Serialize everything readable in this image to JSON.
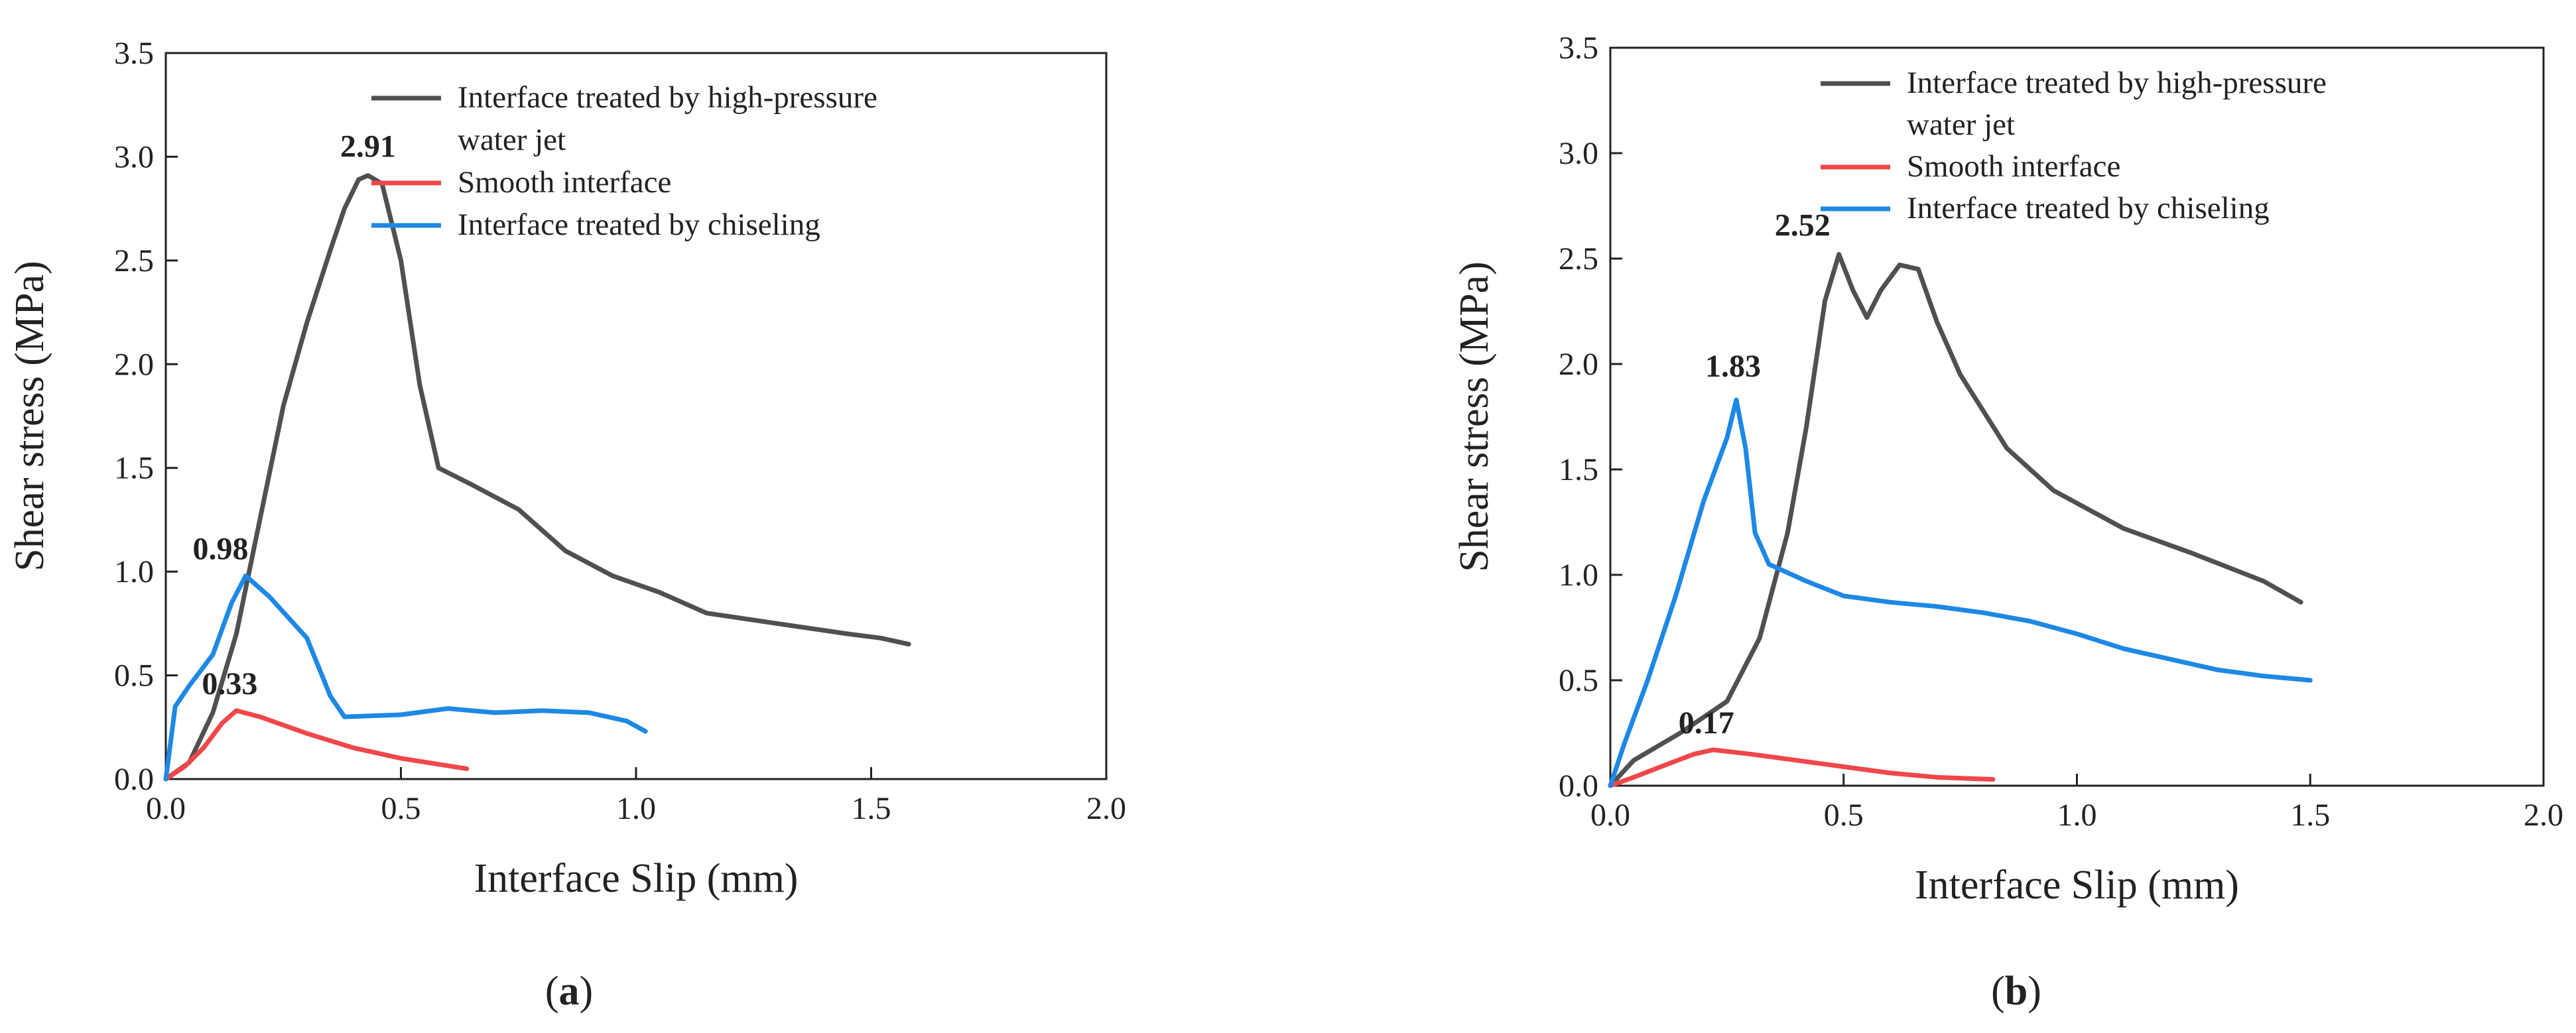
{
  "colors": {
    "water_jet": "#505050",
    "smooth": "#f0474b",
    "chiseling": "#1e88e5",
    "peak_water_jet": "#111111",
    "peak_smooth": "#e8262d",
    "peak_chiseling": "#5a86e6"
  },
  "chart_data": [
    {
      "type": "line",
      "panel": "a",
      "caption": "(a)",
      "caption_open": "(",
      "caption_letter": "a",
      "caption_close": ")",
      "xlabel": "Interface Slip (mm)",
      "ylabel": "Shear stress (MPa)",
      "xlim": [
        0,
        2.0
      ],
      "ylim": [
        0,
        3.5
      ],
      "xticks": [
        "0.0",
        "0.5",
        "1.0",
        "1.5",
        "2.0"
      ],
      "yticks": [
        "0.0",
        "0.5",
        "1.0",
        "1.5",
        "2.0",
        "2.5",
        "3.0",
        "3.5"
      ],
      "xtick_values": [
        0,
        0.5,
        1.0,
        1.5,
        2.0
      ],
      "ytick_values": [
        0,
        0.5,
        1.0,
        1.5,
        2.0,
        2.5,
        3.0,
        3.5
      ],
      "legend_position": "top-right",
      "series": [
        {
          "key": "water_jet",
          "name_line1": "Interface treated by high-pressure",
          "name_line2": "water jet",
          "peak_label": "2.91",
          "peak": [
            0.43,
            2.91
          ],
          "points": [
            [
              0,
              0
            ],
            [
              0.05,
              0.08
            ],
            [
              0.1,
              0.32
            ],
            [
              0.15,
              0.7
            ],
            [
              0.2,
              1.25
            ],
            [
              0.25,
              1.8
            ],
            [
              0.3,
              2.2
            ],
            [
              0.35,
              2.55
            ],
            [
              0.38,
              2.75
            ],
            [
              0.41,
              2.89
            ],
            [
              0.43,
              2.91
            ],
            [
              0.46,
              2.87
            ],
            [
              0.5,
              2.5
            ],
            [
              0.54,
              1.9
            ],
            [
              0.58,
              1.5
            ],
            [
              0.65,
              1.42
            ],
            [
              0.75,
              1.3
            ],
            [
              0.85,
              1.1
            ],
            [
              0.95,
              0.98
            ],
            [
              1.05,
              0.9
            ],
            [
              1.15,
              0.8
            ],
            [
              1.3,
              0.75
            ],
            [
              1.45,
              0.7
            ],
            [
              1.52,
              0.68
            ],
            [
              1.58,
              0.65
            ]
          ]
        },
        {
          "key": "smooth",
          "name_line1": "Smooth interface",
          "peak_label": "0.33",
          "peak": [
            0.15,
            0.33
          ],
          "points": [
            [
              0,
              0
            ],
            [
              0.04,
              0.06
            ],
            [
              0.08,
              0.15
            ],
            [
              0.12,
              0.27
            ],
            [
              0.15,
              0.33
            ],
            [
              0.2,
              0.3
            ],
            [
              0.3,
              0.22
            ],
            [
              0.4,
              0.15
            ],
            [
              0.5,
              0.1
            ],
            [
              0.64,
              0.05
            ]
          ]
        },
        {
          "key": "chiseling",
          "name_line1": "Interface treated by chiseling",
          "peak_label": "0.98",
          "peak": [
            0.17,
            0.98
          ],
          "points": [
            [
              0,
              0
            ],
            [
              0.02,
              0.35
            ],
            [
              0.05,
              0.45
            ],
            [
              0.1,
              0.6
            ],
            [
              0.14,
              0.85
            ],
            [
              0.17,
              0.98
            ],
            [
              0.22,
              0.88
            ],
            [
              0.3,
              0.68
            ],
            [
              0.35,
              0.4
            ],
            [
              0.38,
              0.3
            ],
            [
              0.5,
              0.31
            ],
            [
              0.6,
              0.34
            ],
            [
              0.7,
              0.32
            ],
            [
              0.8,
              0.33
            ],
            [
              0.9,
              0.32
            ],
            [
              0.98,
              0.28
            ],
            [
              1.02,
              0.23
            ]
          ]
        }
      ]
    },
    {
      "type": "line",
      "panel": "b",
      "caption": "(b)",
      "caption_open": "(",
      "caption_letter": "b",
      "caption_close": ")",
      "xlabel": "Interface Slip (mm)",
      "ylabel": "Shear stress (MPa)",
      "xlim": [
        0,
        2.0
      ],
      "ylim": [
        0,
        3.5
      ],
      "xticks": [
        "0.0",
        "0.5",
        "1.0",
        "1.5",
        "2.0"
      ],
      "yticks": [
        "0.0",
        "0.5",
        "1.0",
        "1.5",
        "2.0",
        "2.5",
        "3.0",
        "3.5"
      ],
      "xtick_values": [
        0,
        0.5,
        1.0,
        1.5,
        2.0
      ],
      "ytick_values": [
        0,
        0.5,
        1.0,
        1.5,
        2.0,
        2.5,
        3.0,
        3.5
      ],
      "legend_position": "top-right",
      "series": [
        {
          "key": "water_jet",
          "name_line1": "Interface treated by high-pressure",
          "name_line2": "water jet",
          "peak_label": "2.52",
          "peak": [
            0.49,
            2.52
          ],
          "points": [
            [
              0,
              0
            ],
            [
              0.05,
              0.12
            ],
            [
              0.15,
              0.25
            ],
            [
              0.25,
              0.4
            ],
            [
              0.32,
              0.7
            ],
            [
              0.38,
              1.2
            ],
            [
              0.42,
              1.7
            ],
            [
              0.46,
              2.3
            ],
            [
              0.49,
              2.52
            ],
            [
              0.52,
              2.35
            ],
            [
              0.55,
              2.22
            ],
            [
              0.58,
              2.35
            ],
            [
              0.62,
              2.47
            ],
            [
              0.66,
              2.45
            ],
            [
              0.7,
              2.2
            ],
            [
              0.75,
              1.95
            ],
            [
              0.85,
              1.6
            ],
            [
              0.95,
              1.4
            ],
            [
              1.1,
              1.22
            ],
            [
              1.25,
              1.1
            ],
            [
              1.4,
              0.97
            ],
            [
              1.48,
              0.87
            ]
          ]
        },
        {
          "key": "smooth",
          "name_line1": "Smooth interface",
          "peak_label": "0.17",
          "peak": [
            0.22,
            0.17
          ],
          "points": [
            [
              0,
              0
            ],
            [
              0.05,
              0.04
            ],
            [
              0.12,
              0.1
            ],
            [
              0.18,
              0.15
            ],
            [
              0.22,
              0.17
            ],
            [
              0.3,
              0.15
            ],
            [
              0.4,
              0.12
            ],
            [
              0.5,
              0.09
            ],
            [
              0.6,
              0.06
            ],
            [
              0.7,
              0.04
            ],
            [
              0.82,
              0.03
            ]
          ]
        },
        {
          "key": "chiseling",
          "name_line1": "Interface treated by chiseling",
          "peak_label": "1.83",
          "peak": [
            0.27,
            1.83
          ],
          "points": [
            [
              0,
              0
            ],
            [
              0.03,
              0.2
            ],
            [
              0.08,
              0.5
            ],
            [
              0.14,
              0.9
            ],
            [
              0.2,
              1.35
            ],
            [
              0.25,
              1.65
            ],
            [
              0.27,
              1.83
            ],
            [
              0.29,
              1.6
            ],
            [
              0.31,
              1.2
            ],
            [
              0.34,
              1.05
            ],
            [
              0.42,
              0.97
            ],
            [
              0.5,
              0.9
            ],
            [
              0.6,
              0.87
            ],
            [
              0.7,
              0.85
            ],
            [
              0.8,
              0.82
            ],
            [
              0.9,
              0.78
            ],
            [
              1.0,
              0.72
            ],
            [
              1.1,
              0.65
            ],
            [
              1.2,
              0.6
            ],
            [
              1.3,
              0.55
            ],
            [
              1.4,
              0.52
            ],
            [
              1.5,
              0.5
            ]
          ]
        }
      ]
    }
  ]
}
